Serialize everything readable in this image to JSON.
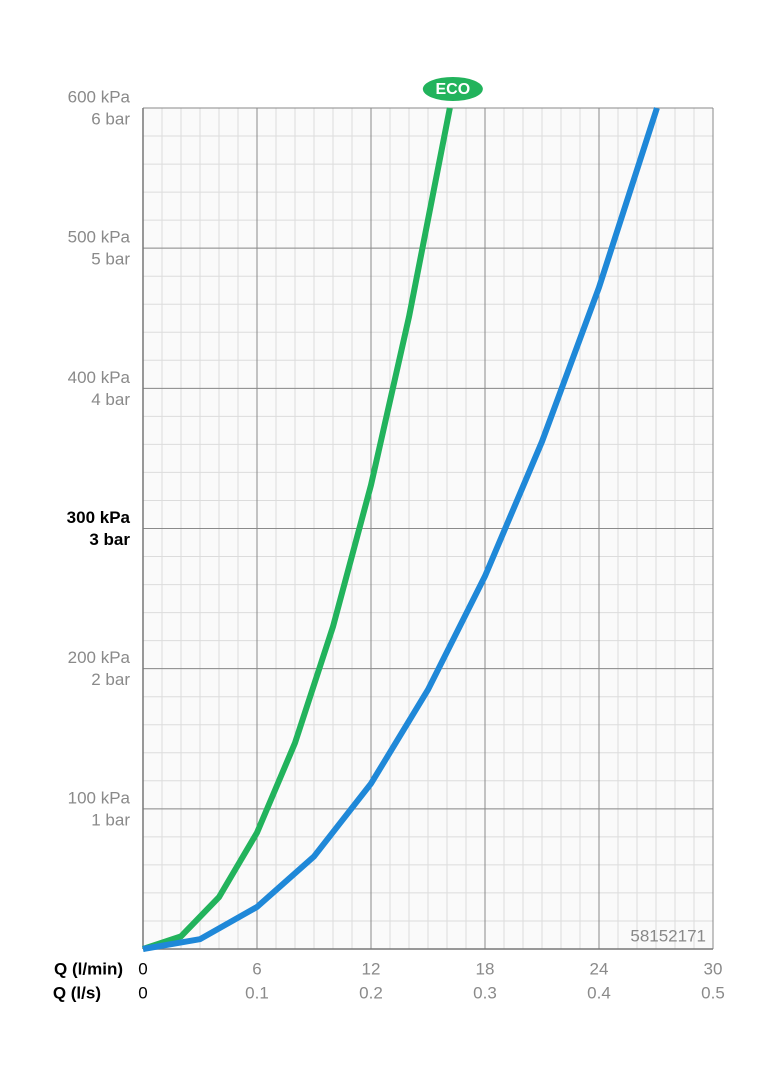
{
  "chart_data": {
    "type": "line",
    "x_label": "Q (l/min)",
    "x2_label": "Q (l/s)",
    "xlim": [
      0,
      30
    ],
    "xticks": [
      0,
      6,
      12,
      18,
      24,
      30
    ],
    "x2lim": [
      0,
      0.5
    ],
    "x2ticks": [
      0,
      0.1,
      0.2,
      0.3,
      0.4,
      0.5
    ],
    "ylim": [
      0,
      600
    ],
    "yticks": [
      {
        "value": 100,
        "label": "100 kPa"
      },
      {
        "value": 200,
        "label": "200 kPa"
      },
      {
        "value": 300,
        "label": "300 kPa"
      },
      {
        "value": 400,
        "label": "400 kPa"
      },
      {
        "value": 500,
        "label": "500 kPa"
      },
      {
        "value": 600,
        "label": "600 kPa"
      }
    ],
    "y2lim": [
      0,
      6
    ],
    "y2ticks": [
      {
        "value": 1,
        "label": "1 bar"
      },
      {
        "value": 2,
        "label": "2 bar"
      },
      {
        "value": 3,
        "label": "3 bar"
      },
      {
        "value": 4,
        "label": "4 bar"
      },
      {
        "value": 5,
        "label": "5 bar"
      },
      {
        "value": 6,
        "label": "6 bar"
      }
    ],
    "emphasized_ytick": 300,
    "grid": true,
    "minor_grid": {
      "x": 1,
      "y": 20
    },
    "annotation": "58152171",
    "series": [
      {
        "name": "ECO",
        "color": "#22b35c",
        "x": [
          0,
          2,
          4,
          6,
          8,
          10,
          12,
          14,
          16.15
        ],
        "values": [
          0,
          9,
          37,
          83,
          147,
          230,
          331,
          451,
          600
        ]
      },
      {
        "color": "#1f88d8",
        "x": [
          0,
          3,
          6,
          9,
          12,
          15,
          18,
          21,
          24,
          27.05
        ],
        "values": [
          0,
          7,
          30,
          66,
          118,
          185,
          266,
          362,
          472,
          600
        ]
      }
    ]
  }
}
